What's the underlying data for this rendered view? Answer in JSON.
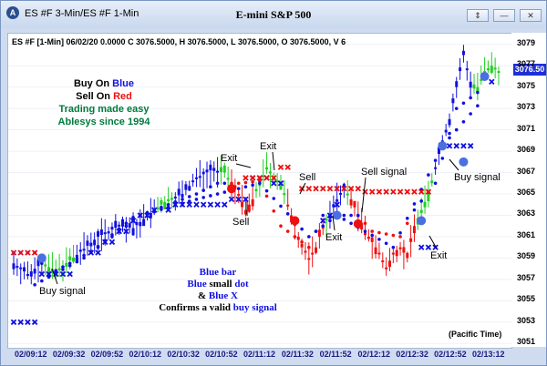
{
  "window": {
    "title": "ES #F 3-Min/ES #F 1-Min",
    "chart_title": "E-mini S&P 500",
    "buttons": [
      "⇕",
      "—",
      "✕"
    ]
  },
  "chart_info": "ES #F [1-Min] 06/02/20  0.0000 C 3076.5000, H 3076.5000, L 3076.5000, O 3076.5000, V 6",
  "legend": {
    "line1_prefix": "Buy On ",
    "line1_word": "Blue",
    "line2_prefix": "Sell On ",
    "line2_word": "Red",
    "line3": "Trading made easy",
    "line4": "Ablesys since 1994"
  },
  "annotations": {
    "exit1": "Exit",
    "exit2": "Exit",
    "sell1": "Sell",
    "sell2": "Sell",
    "sell_signal": "Sell signal",
    "exit3": "Exit",
    "buy_signal1": "Buy signal",
    "buy_signal2": "Buy signal",
    "exit4": "Exit"
  },
  "confirm_note": {
    "line1": "Blue bar",
    "line2_a": "Blue",
    "line2_b": " small ",
    "line2_c": "dot",
    "line3_a": "& ",
    "line3_b": "Blue X",
    "line4_a": "Confirms a valid ",
    "line4_b": "buy signal"
  },
  "timezone_label": "(Pacific Time)",
  "current_price": "3076.50",
  "colors": {
    "buy": "#1010e0",
    "sell": "#ee1010",
    "neutral": "#20d020",
    "legend_green": "#007a3d",
    "current_price_bg": "#1e2fd6"
  },
  "chart_data": {
    "type": "candlestick",
    "y_axis_ticks": [
      "3079",
      "3077",
      "3075",
      "3073",
      "3071",
      "3069",
      "3067",
      "3065",
      "3063",
      "3061",
      "3059",
      "3057",
      "3055",
      "3053",
      "3051"
    ],
    "ylim": [
      3050.6,
      3080.0
    ],
    "x_axis_ticks": [
      "02/09:12",
      "02/09:32",
      "02/09:52",
      "02/10:12",
      "02/10:32",
      "02/10:52",
      "02/11:12",
      "02/11:32",
      "02/11:52",
      "02/12:12",
      "02/12:32",
      "02/12:52",
      "02/13:12"
    ],
    "price_path": [
      [
        0,
        3058.5
      ],
      [
        4,
        3057.5
      ],
      [
        8,
        3058.5
      ],
      [
        12,
        3057.8
      ],
      [
        18,
        3059.3
      ],
      [
        24,
        3061.0
      ],
      [
        30,
        3062.0
      ],
      [
        34,
        3061.8
      ],
      [
        40,
        3063.5
      ],
      [
        44,
        3064.5
      ],
      [
        48,
        3065.0
      ],
      [
        52,
        3066.5
      ],
      [
        56,
        3067.2
      ],
      [
        60,
        3067.0
      ],
      [
        62,
        3066.0
      ],
      [
        64,
        3065.0
      ],
      [
        66,
        3063.5
      ],
      [
        68,
        3064.5
      ],
      [
        70,
        3066.0
      ],
      [
        72,
        3067.5
      ],
      [
        74,
        3066.5
      ],
      [
        76,
        3066.0
      ],
      [
        78,
        3064.0
      ],
      [
        80,
        3062.0
      ],
      [
        82,
        3060.0
      ],
      [
        84,
        3059.0
      ],
      [
        86,
        3060.0
      ],
      [
        88,
        3062.0
      ],
      [
        90,
        3063.0
      ],
      [
        92,
        3064.5
      ],
      [
        94,
        3065.5
      ],
      [
        96,
        3064.5
      ],
      [
        98,
        3063.0
      ],
      [
        100,
        3061.5
      ],
      [
        102,
        3060.5
      ],
      [
        104,
        3059.5
      ],
      [
        106,
        3058.0
      ],
      [
        108,
        3059.5
      ],
      [
        110,
        3060.0
      ],
      [
        112,
        3059.0
      ],
      [
        114,
        3062.0
      ],
      [
        116,
        3063.5
      ],
      [
        118,
        3065.0
      ],
      [
        120,
        3067.5
      ],
      [
        122,
        3070.0
      ],
      [
        124,
        3072.0
      ],
      [
        126,
        3075.0
      ],
      [
        128,
        3078.0
      ],
      [
        130,
        3075.5
      ],
      [
        132,
        3075.0
      ],
      [
        134,
        3076.5
      ],
      [
        136,
        3077.0
      ],
      [
        138,
        3076.5
      ]
    ],
    "series": [
      {
        "name": "",
        "values": [
          [
            0,
            3059.5
          ],
          [
            6,
            3059.5
          ],
          [
            10,
            3057.5
          ],
          [
            16,
            3058.5
          ],
          [
            24,
            3060.0
          ],
          [
            30,
            3061.5
          ],
          [
            36,
            3063.0
          ],
          [
            44,
            3064.0
          ],
          [
            52,
            3065.0
          ],
          [
            58,
            3066.0
          ],
          [
            64,
            3066.0
          ],
          [
            70,
            3066.2
          ],
          [
            76,
            3062.0
          ],
          [
            84,
            3060.0
          ],
          [
            88,
            3063.0
          ],
          [
            98,
            3063.0
          ],
          [
            102,
            3061.5
          ],
          [
            110,
            3061.0
          ],
          [
            114,
            3063.5
          ],
          [
            120,
            3066.0
          ],
          [
            126,
            3073.0
          ],
          [
            134,
            3075.0
          ]
        ]
      },
      {
        "name": "",
        "values": [
          [
            6,
            3056.5
          ],
          [
            20,
            3059.0
          ],
          [
            34,
            3062.8
          ],
          [
            52,
            3064.5
          ],
          [
            70,
            3066.0
          ],
          [
            84,
            3061.0
          ],
          [
            92,
            3063.0
          ],
          [
            108,
            3060.0
          ],
          [
            122,
            3069.5
          ],
          [
            134,
            3074.0
          ]
        ]
      }
    ],
    "buy_x_marks": [
      [
        0,
        3053.0
      ],
      [
        2,
        3053.0
      ],
      [
        4,
        3053.0
      ],
      [
        6,
        3053.0
      ],
      [
        8,
        3057.5
      ],
      [
        10,
        3057.5
      ],
      [
        12,
        3057.5
      ],
      [
        14,
        3057.5
      ],
      [
        16,
        3057.5
      ],
      [
        22,
        3059.5
      ],
      [
        24,
        3059.5
      ],
      [
        26,
        3060.5
      ],
      [
        28,
        3060.5
      ],
      [
        30,
        3061.5
      ],
      [
        32,
        3061.5
      ],
      [
        34,
        3062.5
      ],
      [
        36,
        3063.0
      ],
      [
        38,
        3063.0
      ],
      [
        40,
        3063.5
      ],
      [
        44,
        3063.5
      ],
      [
        46,
        3064.0
      ],
      [
        48,
        3064.0
      ],
      [
        50,
        3064.0
      ],
      [
        52,
        3064.0
      ],
      [
        54,
        3064.0
      ],
      [
        56,
        3064.0
      ],
      [
        58,
        3064.0
      ],
      [
        60,
        3064.0
      ],
      [
        62,
        3064.5
      ],
      [
        64,
        3064.5
      ],
      [
        66,
        3064.5
      ],
      [
        68,
        3066.5
      ],
      [
        70,
        3066.5
      ],
      [
        72,
        3066.5
      ],
      [
        74,
        3066.0
      ],
      [
        76,
        3066.0
      ],
      [
        88,
        3062.5
      ],
      [
        90,
        3063.0
      ],
      [
        92,
        3064.0
      ],
      [
        116,
        3060.0
      ],
      [
        118,
        3060.0
      ],
      [
        120,
        3060.0
      ],
      [
        122,
        3069.5
      ],
      [
        124,
        3069.5
      ],
      [
        126,
        3069.5
      ],
      [
        128,
        3069.5
      ],
      [
        130,
        3069.5
      ],
      [
        136,
        3075.5
      ]
    ],
    "sell_x_marks": [
      [
        0,
        3059.5
      ],
      [
        2,
        3059.5
      ],
      [
        4,
        3059.5
      ],
      [
        6,
        3059.5
      ],
      [
        66,
        3066.5
      ],
      [
        68,
        3066.5
      ],
      [
        70,
        3066.5
      ],
      [
        72,
        3066.5
      ],
      [
        74,
        3066.5
      ],
      [
        76,
        3067.5
      ],
      [
        78,
        3067.5
      ],
      [
        82,
        3065.5
      ],
      [
        84,
        3065.5
      ],
      [
        86,
        3065.5
      ],
      [
        88,
        3065.5
      ],
      [
        90,
        3065.5
      ],
      [
        92,
        3065.5
      ],
      [
        94,
        3065.5
      ],
      [
        96,
        3065.5
      ],
      [
        98,
        3065.5
      ],
      [
        100,
        3065.2
      ],
      [
        102,
        3065.2
      ],
      [
        104,
        3065.2
      ],
      [
        106,
        3065.2
      ],
      [
        108,
        3065.2
      ],
      [
        110,
        3065.2
      ],
      [
        112,
        3065.2
      ],
      [
        114,
        3065.2
      ],
      [
        116,
        3065.2
      ],
      [
        118,
        3065.2
      ]
    ],
    "buy_signals": [
      [
        8,
        3059.0
      ],
      [
        92,
        3063.0
      ],
      [
        116,
        3062.5
      ],
      [
        122,
        3069.5
      ],
      [
        128,
        3068.0
      ],
      [
        134,
        3076.0
      ]
    ],
    "sell_signals": [
      [
        62,
        3065.5
      ],
      [
        80,
        3062.5
      ],
      [
        98,
        3062.2
      ]
    ]
  }
}
